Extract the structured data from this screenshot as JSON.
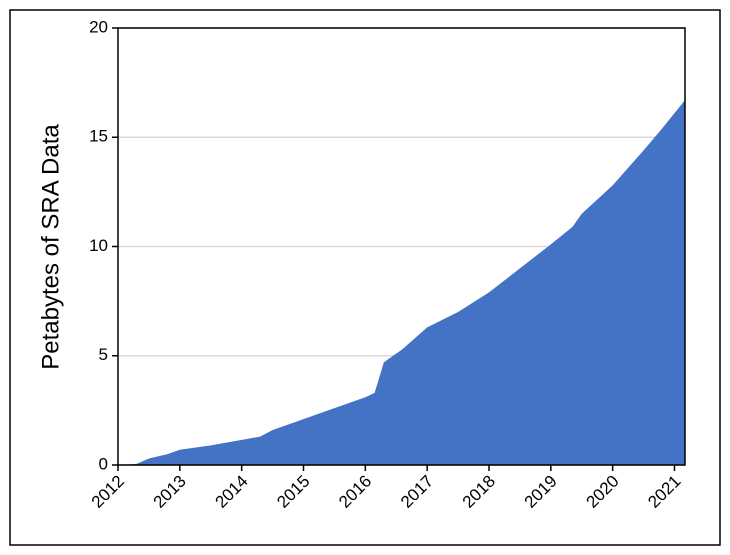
{
  "chart_data": {
    "type": "area",
    "ylabel": "Petabytes of SRA Data",
    "x": [
      2012.0,
      2012.3,
      2012.5,
      2012.8,
      2013.0,
      2013.5,
      2013.9,
      2014.3,
      2014.5,
      2014.8,
      2015.0,
      2015.3,
      2015.6,
      2016.0,
      2016.15,
      2016.3,
      2016.6,
      2017.0,
      2017.5,
      2018.0,
      2018.5,
      2019.0,
      2019.35,
      2019.5,
      2020.0,
      2020.5,
      2020.8,
      2021.17
    ],
    "values": [
      0,
      0.05,
      0.3,
      0.5,
      0.7,
      0.9,
      1.1,
      1.3,
      1.6,
      1.9,
      2.1,
      2.4,
      2.7,
      3.1,
      3.3,
      4.7,
      5.3,
      6.3,
      7.0,
      7.9,
      9.0,
      10.1,
      10.9,
      11.5,
      12.8,
      14.4,
      15.4,
      16.7
    ],
    "color": "#4472c4",
    "xlim": [
      2012,
      2021.17
    ],
    "xticks": [
      2012,
      2013,
      2014,
      2015,
      2016,
      2017,
      2018,
      2019,
      2020,
      2021
    ],
    "ylim": [
      0,
      20
    ],
    "yticks": [
      0,
      5,
      10,
      15,
      20
    ],
    "grid": true
  }
}
